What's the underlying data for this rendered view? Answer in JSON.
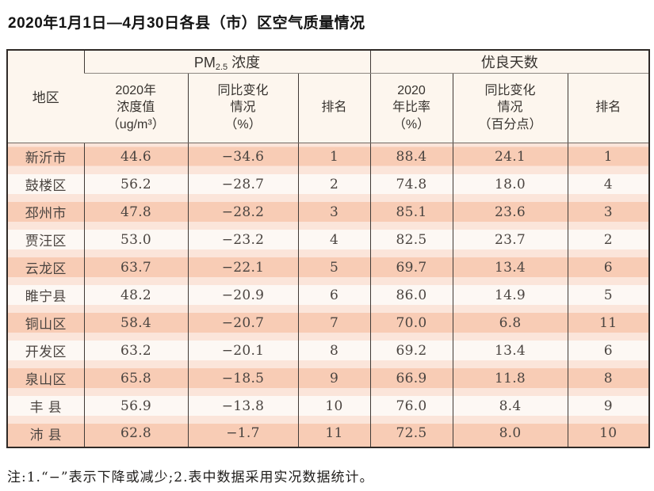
{
  "title": "2020年1月1日—4月30日各县（市）区空气质量情况",
  "table": {
    "corner_header": "地区",
    "groups": {
      "pm_prefix": "PM",
      "pm_sub": "2.5",
      "pm_label": " 浓度",
      "good_days": "优良天数"
    },
    "columns": [
      "2020年\n浓度值\n（ug/m³）",
      "同比变化\n情况\n（%）",
      "排名",
      "2020\n年比率\n（%）",
      "同比变化\n情况\n（百分点）",
      "排名"
    ],
    "row_keys": [
      "region",
      "pm25-2020-value",
      "pm25-change",
      "pm25-rank",
      "good-days-ratio",
      "good-days-change",
      "good-days-rank"
    ],
    "rows": [
      [
        "新沂市",
        "44.6",
        "−34.6",
        "1",
        "88.4",
        "24.1",
        "1"
      ],
      [
        "鼓楼区",
        "56.2",
        "−28.7",
        "2",
        "74.8",
        "18.0",
        "4"
      ],
      [
        "邳州市",
        "47.8",
        "−28.2",
        "3",
        "85.1",
        "23.6",
        "3"
      ],
      [
        "贾汪区",
        "53.0",
        "−23.2",
        "4",
        "82.5",
        "23.7",
        "2"
      ],
      [
        "云龙区",
        "63.7",
        "−22.1",
        "5",
        "69.7",
        "13.4",
        "6"
      ],
      [
        "睢宁县",
        "48.2",
        "−20.9",
        "6",
        "86.0",
        "14.9",
        "5"
      ],
      [
        "铜山区",
        "58.4",
        "−20.7",
        "7",
        "70.0",
        "6.8",
        "11"
      ],
      [
        "开发区",
        "63.2",
        "−20.1",
        "8",
        "69.2",
        "13.4",
        "6"
      ],
      [
        "泉山区",
        "65.8",
        "−18.5",
        "9",
        "66.9",
        "11.8",
        "8"
      ],
      [
        "丰 县",
        "56.9",
        "−13.8",
        "10",
        "76.0",
        "8.4",
        "9"
      ],
      [
        "沛 县",
        "62.8",
        "−1.7",
        "11",
        "72.5",
        "8.0",
        "10"
      ]
    ]
  },
  "note": "注:1.“−”表示下降或减少;2.表中数据采用实况数据统计。",
  "colors": {
    "band_odd": "#f8ccb5",
    "band_even": "#fdf8f4",
    "band_gap": "#fbe5da",
    "header_bg": "#fdf6ee",
    "border_dark": "#2f2a27",
    "grid_line": "#403a36"
  }
}
